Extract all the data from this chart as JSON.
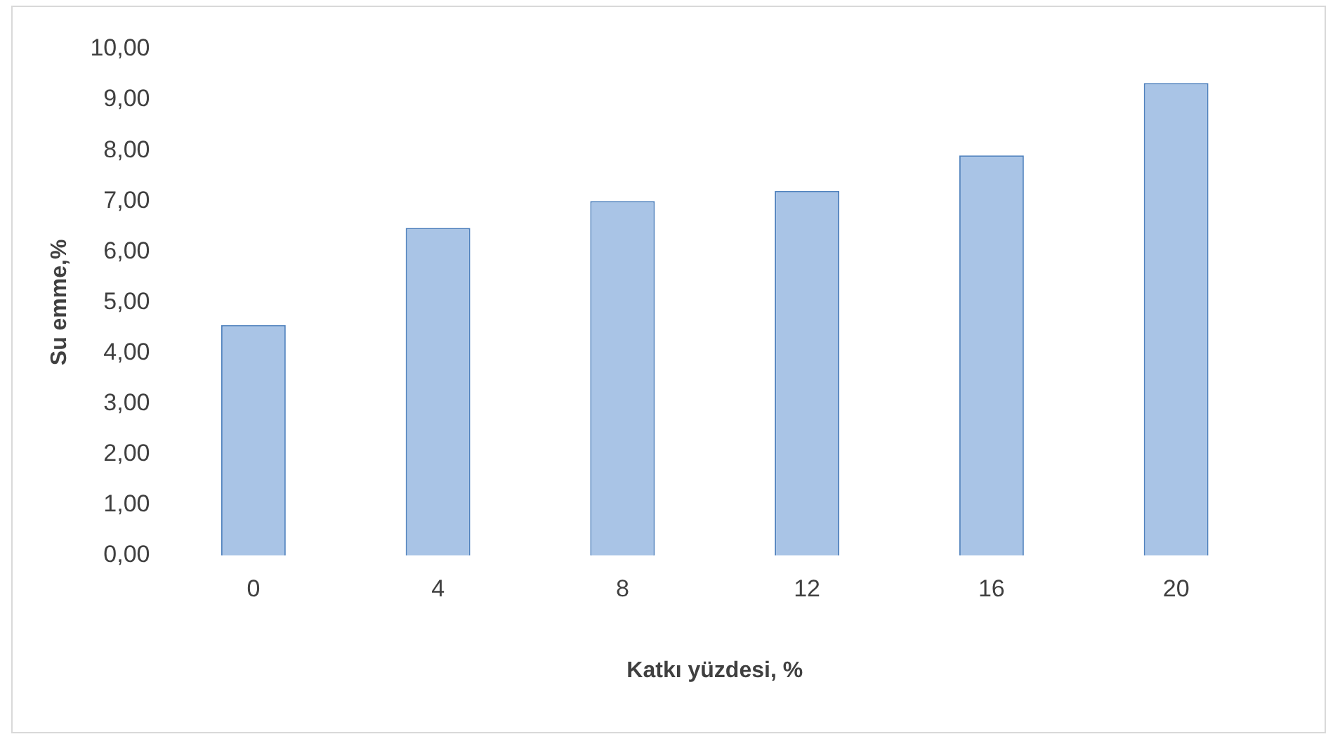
{
  "chart_data": {
    "type": "bar",
    "xlabel": "Katkı yüzdesi, %",
    "ylabel": "Su emme,%",
    "categories": [
      "0",
      "4",
      "8",
      "12",
      "16",
      "20"
    ],
    "values": [
      4.55,
      6.47,
      7.0,
      7.2,
      7.9,
      9.33
    ],
    "color": "#a9c4e6",
    "ylim": [
      0,
      10
    ],
    "yticks": [
      {
        "value": 0,
        "label": "0,00"
      },
      {
        "value": 1,
        "label": "1,00"
      },
      {
        "value": 2,
        "label": "2,00"
      },
      {
        "value": 3,
        "label": "3,00"
      },
      {
        "value": 4,
        "label": "4,00"
      },
      {
        "value": 5,
        "label": "5,00"
      },
      {
        "value": 6,
        "label": "6,00"
      },
      {
        "value": 7,
        "label": "7,00"
      },
      {
        "value": 8,
        "label": "8,00"
      },
      {
        "value": 9,
        "label": "9,00"
      },
      {
        "value": 10,
        "label": "10,00"
      }
    ],
    "grid": false,
    "legend": false
  }
}
